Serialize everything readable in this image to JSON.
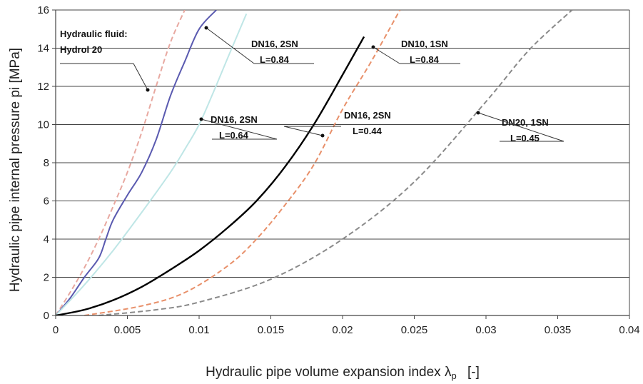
{
  "chart_data": {
    "type": "line",
    "title": "",
    "xlabel": "Hydraulic pipe volume expansion index λ",
    "xlabel_sub": "p",
    "xlabel_unit": "[-]",
    "ylabel": "Hydraulic pipe internal pressure pi [MPa]",
    "xlim": [
      0,
      0.04
    ],
    "ylim": [
      0,
      16
    ],
    "x_ticks": [
      "0",
      "0.005",
      "0.01",
      "0.015",
      "0.02",
      "0.025",
      "0.03",
      "0.035",
      "0.04"
    ],
    "y_ticks": [
      "0",
      "2",
      "4",
      "6",
      "8",
      "10",
      "12",
      "14",
      "16"
    ],
    "grid": "horizontal",
    "legend": "none",
    "series": [
      {
        "style": "dashed",
        "color": "#e8a8a0",
        "x": [
          0,
          0.001,
          0.002,
          0.003,
          0.004,
          0.005,
          0.006,
          0.007,
          0.008,
          0.009
        ],
        "y": [
          0,
          1.2,
          2.5,
          4.0,
          5.7,
          7.5,
          9.6,
          12.0,
          14.3,
          16.0
        ]
      },
      {
        "style": "solid",
        "color": "#5a5ab0",
        "x": [
          0,
          0.001,
          0.002,
          0.003,
          0.0035,
          0.004,
          0.005,
          0.006,
          0.007,
          0.008,
          0.009,
          0.01,
          0.0112
        ],
        "y": [
          0,
          0.9,
          2.0,
          3.0,
          4.0,
          5.0,
          6.3,
          7.5,
          9.2,
          11.5,
          13.3,
          15.0,
          16.0
        ]
      },
      {
        "style": "solid",
        "color": "#bfe6e6",
        "x": [
          0,
          0.002,
          0.004,
          0.006,
          0.008,
          0.009,
          0.01,
          0.011,
          0.012,
          0.0133
        ],
        "y": [
          0,
          1.6,
          3.4,
          5.4,
          7.5,
          8.7,
          10.0,
          11.7,
          13.5,
          15.8
        ]
      },
      {
        "style": "solid",
        "color": "#000000",
        "x": [
          0,
          0.002,
          0.004,
          0.006,
          0.008,
          0.01,
          0.012,
          0.014,
          0.016,
          0.018,
          0.02,
          0.0215
        ],
        "y": [
          0,
          0.3,
          0.8,
          1.5,
          2.4,
          3.4,
          4.6,
          6.0,
          7.8,
          10.0,
          12.6,
          14.6
        ]
      },
      {
        "style": "dashed",
        "color": "#e8906a",
        "x": [
          0.002,
          0.006,
          0.009,
          0.012,
          0.014,
          0.016,
          0.018,
          0.02,
          0.022,
          0.024
        ],
        "y": [
          0,
          0.5,
          1.2,
          2.6,
          4.0,
          5.8,
          7.9,
          10.8,
          13.3,
          16.0
        ]
      },
      {
        "style": "dashed",
        "color": "#8a8a8a",
        "x": [
          0.003,
          0.007,
          0.01,
          0.015,
          0.02,
          0.025,
          0.03,
          0.033,
          0.036
        ],
        "y": [
          0,
          0.3,
          0.7,
          1.9,
          4.0,
          7.0,
          11.2,
          13.9,
          16.0
        ]
      }
    ],
    "annotations": [
      {
        "lines": [
          "Hydraulic fluid:",
          "Hydrol 20"
        ]
      },
      {
        "lines": [
          "DN16, 2SN",
          "L=0.84"
        ]
      },
      {
        "lines": [
          "DN10, 1SN",
          "L=0.84"
        ]
      },
      {
        "lines": [
          "DN16, 2SN",
          "L=0.64"
        ]
      },
      {
        "lines": [
          "DN16, 2SN",
          "L=0.44"
        ]
      },
      {
        "lines": [
          "DN20, 1SN",
          "L=0.45"
        ]
      }
    ]
  }
}
